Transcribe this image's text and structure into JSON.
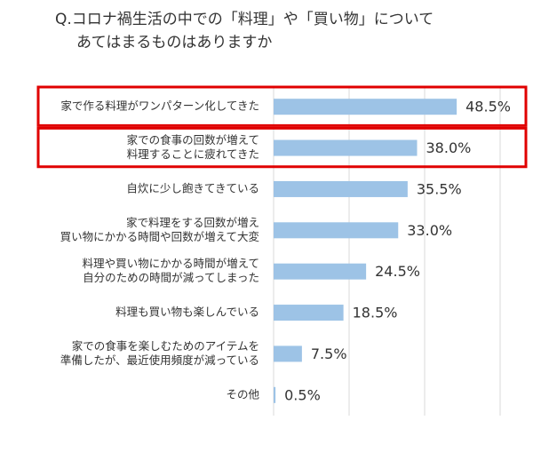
{
  "chart_data": {
    "type": "barh",
    "title": [
      "Q.コロナ禍生活の中での「料理」や「買い物」について",
      "あてはまるものはありますか"
    ],
    "categories": [
      [
        "家で作る料理がワンパターン化してきた"
      ],
      [
        "家での食事の回数が増えて",
        "料理することに疲れてきた"
      ],
      [
        "自炊に少し飽きてきている"
      ],
      [
        "家で料理をする回数が増え",
        "買い物にかかる時間や回数が増えて大変"
      ],
      [
        "料理や買い物にかかる時間が増えて",
        "自分のための時間が減ってしまった"
      ],
      [
        "料理も買い物も楽しんでいる"
      ],
      [
        "家での食事を楽しむためのアイテムを",
        "準備したが、最近使用頻度が減っている"
      ],
      [
        "その他"
      ]
    ],
    "values": [
      48.5,
      38,
      35.5,
      33,
      24.5,
      18.5,
      7.5,
      0.5
    ],
    "value_labels": [
      "48.5%",
      "38.0%",
      "35.5%",
      "33.0%",
      "24.5%",
      "18.5%",
      "7.5%",
      "0.5%"
    ],
    "color": "#9dc3e6",
    "xlim": [
      0,
      60
    ],
    "xticks": [
      0,
      20,
      40,
      60
    ],
    "grid": true,
    "highlight": [
      0,
      1
    ],
    "highlight_color": "#e00000"
  }
}
